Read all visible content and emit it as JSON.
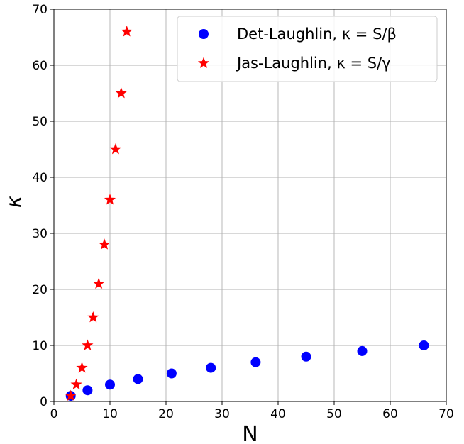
{
  "chart_data": {
    "type": "scatter",
    "xlabel": "N",
    "ylabel": "κ",
    "xlim": [
      0,
      70
    ],
    "ylim": [
      0,
      70
    ],
    "xticks": [
      0,
      10,
      20,
      30,
      40,
      50,
      60,
      70
    ],
    "yticks": [
      0,
      10,
      20,
      30,
      40,
      50,
      60,
      70
    ],
    "grid": true,
    "legend_position": "top-right",
    "series": [
      {
        "name": "Det-Laughlin, κ = S/β",
        "marker": "circle",
        "color": "#0000ff",
        "x": [
          3,
          6,
          10,
          15,
          21,
          28,
          36,
          45,
          55,
          66
        ],
        "y": [
          1,
          2,
          3,
          4,
          5,
          6,
          7,
          8,
          9,
          10
        ]
      },
      {
        "name": "Jas-Laughlin,  κ = S/γ",
        "marker": "star",
        "color": "#ff0000",
        "x": [
          3,
          4,
          5,
          6,
          7,
          8,
          9,
          10,
          11,
          12,
          13
        ],
        "y": [
          1,
          3,
          6,
          10,
          15,
          21,
          28,
          36,
          45,
          55,
          66
        ]
      }
    ]
  }
}
